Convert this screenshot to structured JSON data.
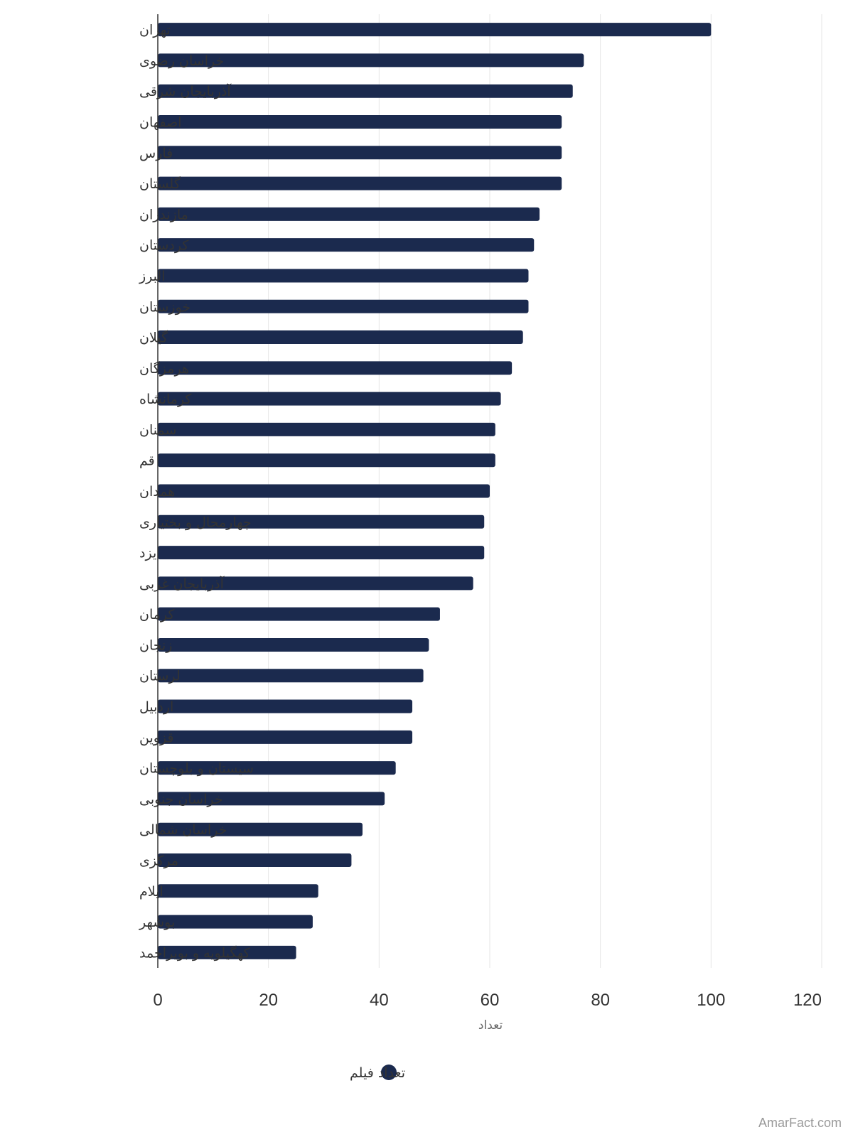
{
  "chart_data": {
    "type": "bar",
    "orientation": "horizontal",
    "categories": [
      "تهران",
      "خراسان رضوی",
      "آذربایجان شرقی",
      "اصفهان",
      "فارس",
      "گلستان",
      "مازندران",
      "کردستان",
      "البرز",
      "خوزستان",
      "گیلان",
      "هرمزگان",
      "کرمانشاه",
      "سمنان",
      "قم",
      "همدان",
      "چهارمحال و بختیاری",
      "یزد",
      "آذربایجان غربی",
      "کرمان",
      "زنجان",
      "لرستان",
      "اردبیل",
      "قزوین",
      "سیستان و بلوچستان",
      "خراسان جنوبی",
      "خراسان شمالی",
      "مرکزی",
      "ایلام",
      "بوشهر",
      "کهگیلویه و بویراحمد"
    ],
    "series": [
      {
        "name": "تعداد فیلم",
        "values": [
          100,
          77,
          75,
          73,
          73,
          73,
          69,
          68,
          67,
          67,
          66,
          64,
          62,
          61,
          61,
          60,
          59,
          59,
          57,
          51,
          49,
          48,
          46,
          46,
          43,
          41,
          37,
          35,
          29,
          28,
          25
        ]
      }
    ],
    "xlabel": "تعداد",
    "ylabel": "",
    "xlim": [
      0,
      120
    ],
    "xticks": [
      0,
      20,
      40,
      60,
      80,
      100,
      120
    ],
    "grid": "vertical",
    "legend": "bottom-center",
    "bar_color": "#1b2a4e",
    "grid_color": "#e6e6e6",
    "axis_color": "#333333"
  },
  "credit": "AmarFact.com"
}
